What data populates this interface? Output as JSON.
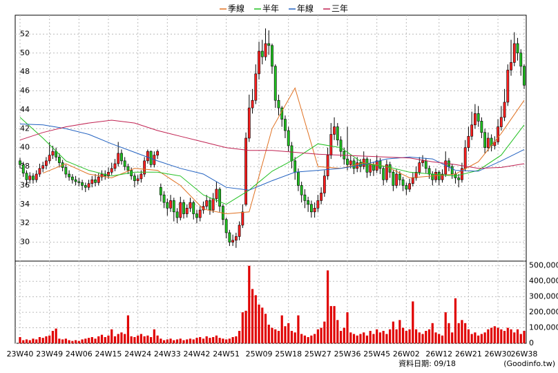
{
  "chart_data": {
    "type": "candlestick",
    "ylim": [
      28,
      54
    ],
    "yticks": [
      30,
      32,
      34,
      36,
      38,
      40,
      42,
      44,
      46,
      48,
      50,
      52
    ],
    "xlim": [
      0,
      154
    ],
    "xticks": [
      {
        "value": 0,
        "label": "23W40"
      },
      {
        "value": 9,
        "label": "23W49"
      },
      {
        "value": 18,
        "label": "24W06"
      },
      {
        "value": 27,
        "label": "24W15"
      },
      {
        "value": 36,
        "label": "24W24"
      },
      {
        "value": 45,
        "label": "24W33"
      },
      {
        "value": 54,
        "label": "24W42"
      },
      {
        "value": 63,
        "label": "24W51"
      },
      {
        "value": 73,
        "label": "25W09"
      },
      {
        "value": 82,
        "label": "25W18"
      },
      {
        "value": 91,
        "label": "25W27"
      },
      {
        "value": 100,
        "label": "25W36"
      },
      {
        "value": 109,
        "label": "25W45"
      },
      {
        "value": 118,
        "label": "26W02"
      },
      {
        "value": 128,
        "label": "26W12"
      },
      {
        "value": 137,
        "label": "26W21"
      },
      {
        "value": 146,
        "label": "26W30"
      },
      {
        "value": 154,
        "label": "26W38"
      }
    ],
    "grid": true,
    "up_color": "#ff2020",
    "down_color": "#20c020",
    "series": [
      {
        "name": "季線",
        "color": "#e07020",
        "x": [
          7,
          14,
          21,
          28,
          35,
          42,
          49,
          56,
          63,
          70,
          77,
          84,
          91,
          98,
          105,
          112,
          119,
          126,
          133,
          140,
          147,
          154
        ],
        "values": [
          37.3,
          38.3,
          37.2,
          36.8,
          37.8,
          37.6,
          36.0,
          33.5,
          33.0,
          33.2,
          42.0,
          46.3,
          38.0,
          37.8,
          38.4,
          38.0,
          36.8,
          37.0,
          37.2,
          38.5,
          41.5,
          45.0
        ]
      },
      {
        "name": "半年",
        "color": "#20c020",
        "x": [
          0,
          7,
          14,
          21,
          28,
          35,
          42,
          49,
          56,
          63,
          70,
          77,
          84,
          91,
          98,
          105,
          112,
          119,
          126,
          133,
          140,
          147,
          154
        ],
        "values": [
          43.2,
          41.0,
          38.6,
          37.6,
          37.0,
          37.4,
          37.4,
          37.0,
          35.0,
          34.0,
          35.5,
          37.5,
          38.8,
          40.4,
          40.0,
          38.3,
          38.0,
          37.4,
          37.2,
          37.0,
          37.6,
          39.2,
          42.4
        ]
      },
      {
        "name": "年線",
        "color": "#2060c0",
        "x": [
          0,
          7,
          14,
          21,
          28,
          35,
          42,
          49,
          56,
          63,
          70,
          77,
          84,
          91,
          98,
          105,
          112,
          119,
          126,
          133,
          140,
          147,
          154
        ],
        "values": [
          42.5,
          42.4,
          42.0,
          41.4,
          40.4,
          39.5,
          38.6,
          37.8,
          37.2,
          35.8,
          35.5,
          36.5,
          37.4,
          37.6,
          37.8,
          38.2,
          38.8,
          39.0,
          38.8,
          37.6,
          37.5,
          38.6,
          39.8
        ]
      },
      {
        "name": "三年",
        "color": "#c02050",
        "x": [
          0,
          7,
          14,
          21,
          28,
          35,
          42,
          49,
          56,
          63,
          70,
          77,
          84,
          91,
          98,
          105,
          112,
          119,
          126,
          133,
          140,
          147,
          154
        ],
        "values": [
          40.8,
          41.6,
          42.2,
          42.6,
          42.9,
          42.6,
          41.8,
          41.2,
          40.6,
          40.0,
          39.7,
          39.7,
          39.5,
          39.3,
          39.2,
          39.1,
          39.0,
          38.9,
          38.5,
          38.2,
          37.8,
          37.9,
          38.3
        ]
      }
    ],
    "candles": [
      [
        38.6,
        38.9,
        37.8,
        38.2
      ],
      [
        38.2,
        38.5,
        36.9,
        37.3
      ],
      [
        37.3,
        37.6,
        36.1,
        36.6
      ],
      [
        36.6,
        37.4,
        36.2,
        37.0
      ],
      [
        37.0,
        37.3,
        36.2,
        36.6
      ],
      [
        36.6,
        37.6,
        36.3,
        37.2
      ],
      [
        37.2,
        38.3,
        36.9,
        37.8
      ],
      [
        37.8,
        38.5,
        37.4,
        38.1
      ],
      [
        38.1,
        39.0,
        37.7,
        38.6
      ],
      [
        38.6,
        40.6,
        38.3,
        39.2
      ],
      [
        39.2,
        40.2,
        38.8,
        39.6
      ],
      [
        39.6,
        40.0,
        38.6,
        39.0
      ],
      [
        39.0,
        39.4,
        37.9,
        38.4
      ],
      [
        38.4,
        38.7,
        37.5,
        37.9
      ],
      [
        37.9,
        38.2,
        36.8,
        37.2
      ],
      [
        37.2,
        37.6,
        36.5,
        36.9
      ],
      [
        36.9,
        37.2,
        36.2,
        36.6
      ],
      [
        36.6,
        37.0,
        36.0,
        36.4
      ],
      [
        36.4,
        36.8,
        35.9,
        36.3
      ],
      [
        36.3,
        36.6,
        35.5,
        36.0
      ],
      [
        36.0,
        36.3,
        35.3,
        35.8
      ],
      [
        35.8,
        36.6,
        35.5,
        36.2
      ],
      [
        36.2,
        37.0,
        35.8,
        36.6
      ],
      [
        36.6,
        37.2,
        35.9,
        36.3
      ],
      [
        36.3,
        37.3,
        36.0,
        36.9
      ],
      [
        36.9,
        37.6,
        36.5,
        37.2
      ],
      [
        37.2,
        37.6,
        36.6,
        37.0
      ],
      [
        37.0,
        37.9,
        36.7,
        37.4
      ],
      [
        37.4,
        38.4,
        37.1,
        37.8
      ],
      [
        37.8,
        38.8,
        37.5,
        38.3
      ],
      [
        38.3,
        40.6,
        38.0,
        39.4
      ],
      [
        39.4,
        39.8,
        38.2,
        38.6
      ],
      [
        38.6,
        39.0,
        37.6,
        38.0
      ],
      [
        38.0,
        38.3,
        37.2,
        37.6
      ],
      [
        37.6,
        37.9,
        36.6,
        37.0
      ],
      [
        37.0,
        37.3,
        35.8,
        36.5
      ],
      [
        36.5,
        37.1,
        36.1,
        36.7
      ],
      [
        36.7,
        37.6,
        36.3,
        37.2
      ],
      [
        37.2,
        39.0,
        36.9,
        38.6
      ],
      [
        38.6,
        39.8,
        38.3,
        39.6
      ],
      [
        39.6,
        39.7,
        37.9,
        38.2
      ],
      [
        38.2,
        39.6,
        37.9,
        39.2
      ],
      [
        39.2,
        39.8,
        38.8,
        39.6
      ],
      [
        35.8,
        36.2,
        34.3,
        35.0
      ],
      [
        35.0,
        35.4,
        33.6,
        34.2
      ],
      [
        34.2,
        34.6,
        32.8,
        33.6
      ],
      [
        33.6,
        35.0,
        33.2,
        34.4
      ],
      [
        34.4,
        34.7,
        32.2,
        33.2
      ],
      [
        33.2,
        33.6,
        32.0,
        32.6
      ],
      [
        32.6,
        34.8,
        32.3,
        34.2
      ],
      [
        34.2,
        34.5,
        32.5,
        33.0
      ],
      [
        33.0,
        34.0,
        32.6,
        33.6
      ],
      [
        33.6,
        34.7,
        33.2,
        34.2
      ],
      [
        34.2,
        34.4,
        32.4,
        33.0
      ],
      [
        33.0,
        33.4,
        32.0,
        32.6
      ],
      [
        32.6,
        33.8,
        32.2,
        33.4
      ],
      [
        33.4,
        34.3,
        33.0,
        33.8
      ],
      [
        33.8,
        35.0,
        33.5,
        34.4
      ],
      [
        34.4,
        34.7,
        32.9,
        33.4
      ],
      [
        33.4,
        35.2,
        33.1,
        34.6
      ],
      [
        34.6,
        36.4,
        34.2,
        35.6
      ],
      [
        35.6,
        35.8,
        33.2,
        33.8
      ],
      [
        33.8,
        34.0,
        31.8,
        32.4
      ],
      [
        32.4,
        32.6,
        30.4,
        31.0
      ],
      [
        31.0,
        31.3,
        29.6,
        30.0
      ],
      [
        30.0,
        30.8,
        29.6,
        30.2
      ],
      [
        30.2,
        31.0,
        29.4,
        30.6
      ],
      [
        30.6,
        32.2,
        30.2,
        31.8
      ],
      [
        31.8,
        34.0,
        31.5,
        33.2
      ],
      [
        34.0,
        41.6,
        33.8,
        41.0
      ],
      [
        41.0,
        45.6,
        40.6,
        44.2
      ],
      [
        44.2,
        46.2,
        43.6,
        45.0
      ],
      [
        45.0,
        48.8,
        44.6,
        47.8
      ],
      [
        47.8,
        51.2,
        47.2,
        50.2
      ],
      [
        50.2,
        51.4,
        48.8,
        49.6
      ],
      [
        49.6,
        52.6,
        49.2,
        51.0
      ],
      [
        51.0,
        52.4,
        49.8,
        50.8
      ],
      [
        50.8,
        51.0,
        47.8,
        48.6
      ],
      [
        48.6,
        48.8,
        44.2,
        45.0
      ],
      [
        45.0,
        45.6,
        43.4,
        44.2
      ],
      [
        44.2,
        44.4,
        42.2,
        43.0
      ],
      [
        43.0,
        43.4,
        41.0,
        41.8
      ],
      [
        41.8,
        42.2,
        39.6,
        40.2
      ],
      [
        40.2,
        40.6,
        37.8,
        38.6
      ],
      [
        38.6,
        39.0,
        36.6,
        37.4
      ],
      [
        37.4,
        37.8,
        35.4,
        36.0
      ],
      [
        36.0,
        36.4,
        34.2,
        35.0
      ],
      [
        35.0,
        35.6,
        33.6,
        34.4
      ],
      [
        34.4,
        34.8,
        33.2,
        34.0
      ],
      [
        34.0,
        34.4,
        32.6,
        33.2
      ],
      [
        33.2,
        34.2,
        32.6,
        33.6
      ],
      [
        33.6,
        35.0,
        33.2,
        34.4
      ],
      [
        34.4,
        35.8,
        34.0,
        35.2
      ],
      [
        35.2,
        37.6,
        34.8,
        37.0
      ],
      [
        37.0,
        40.0,
        36.6,
        39.2
      ],
      [
        39.2,
        42.6,
        38.8,
        41.4
      ],
      [
        41.4,
        43.2,
        40.8,
        42.2
      ],
      [
        42.2,
        42.6,
        40.2,
        40.8
      ],
      [
        40.8,
        41.2,
        39.0,
        39.6
      ],
      [
        39.6,
        40.0,
        38.2,
        38.8
      ],
      [
        38.8,
        42.2,
        37.6,
        38.2
      ],
      [
        38.2,
        39.2,
        37.8,
        38.6
      ],
      [
        38.6,
        38.9,
        37.2,
        37.8
      ],
      [
        37.8,
        39.0,
        37.4,
        38.4
      ],
      [
        38.4,
        38.8,
        37.4,
        38.0
      ],
      [
        38.0,
        39.6,
        37.7,
        38.8
      ],
      [
        38.8,
        39.0,
        36.8,
        37.4
      ],
      [
        37.4,
        38.8,
        37.0,
        38.2
      ],
      [
        38.2,
        38.5,
        37.0,
        37.6
      ],
      [
        37.6,
        39.2,
        37.3,
        38.6
      ],
      [
        38.6,
        38.9,
        37.2,
        37.8
      ],
      [
        37.8,
        38.0,
        36.0,
        36.6
      ],
      [
        36.6,
        38.7,
        36.3,
        38.2
      ],
      [
        38.2,
        38.5,
        36.8,
        37.4
      ],
      [
        37.4,
        37.6,
        35.4,
        36.0
      ],
      [
        36.0,
        37.7,
        35.7,
        37.2
      ],
      [
        37.2,
        37.5,
        36.0,
        36.6
      ],
      [
        36.6,
        36.9,
        35.4,
        36.0
      ],
      [
        36.0,
        36.3,
        35.0,
        35.6
      ],
      [
        35.6,
        36.7,
        35.3,
        36.2
      ],
      [
        36.2,
        37.4,
        35.9,
        36.8
      ],
      [
        36.8,
        38.0,
        36.5,
        37.4
      ],
      [
        37.4,
        39.0,
        37.1,
        38.4
      ],
      [
        38.4,
        39.2,
        38.0,
        38.6
      ],
      [
        38.6,
        38.9,
        37.3,
        37.8
      ],
      [
        37.8,
        38.1,
        36.7,
        37.2
      ],
      [
        37.2,
        37.5,
        36.0,
        36.6
      ],
      [
        36.6,
        37.8,
        36.3,
        37.4
      ],
      [
        37.4,
        37.6,
        36.0,
        36.6
      ],
      [
        36.6,
        37.7,
        36.3,
        37.2
      ],
      [
        37.2,
        39.6,
        36.9,
        38.6
      ],
      [
        38.6,
        38.9,
        37.5,
        38.0
      ],
      [
        38.0,
        38.3,
        36.7,
        37.2
      ],
      [
        37.2,
        37.5,
        36.2,
        36.8
      ],
      [
        36.8,
        37.2,
        35.8,
        36.6
      ],
      [
        36.6,
        38.4,
        36.3,
        37.8
      ],
      [
        37.8,
        40.8,
        37.5,
        40.0
      ],
      [
        40.0,
        42.2,
        39.6,
        41.2
      ],
      [
        41.2,
        43.8,
        40.8,
        42.4
      ],
      [
        42.4,
        44.6,
        42.0,
        43.6
      ],
      [
        43.6,
        44.4,
        42.2,
        42.8
      ],
      [
        42.8,
        43.2,
        41.0,
        41.6
      ],
      [
        41.6,
        42.0,
        39.4,
        40.0
      ],
      [
        40.0,
        41.6,
        39.6,
        41.0
      ],
      [
        41.0,
        41.4,
        39.6,
        40.2
      ],
      [
        40.2,
        41.2,
        39.8,
        40.6
      ],
      [
        40.6,
        43.0,
        40.3,
        42.2
      ],
      [
        42.2,
        44.4,
        41.8,
        43.2
      ],
      [
        43.2,
        46.2,
        42.8,
        44.8
      ],
      [
        44.8,
        48.8,
        44.4,
        48.2
      ],
      [
        48.2,
        51.4,
        47.6,
        49.0
      ],
      [
        49.0,
        52.2,
        48.6,
        51.0
      ],
      [
        51.0,
        51.6,
        49.2,
        50.0
      ],
      [
        50.0,
        50.4,
        47.6,
        48.6
      ],
      [
        48.6,
        48.8,
        46.2,
        46.6
      ]
    ],
    "volume": {
      "color": "#e00000",
      "ylim": [
        0,
        530000
      ],
      "yticks": [
        0,
        {
          "value": 100000,
          "label": "100,000"
        },
        {
          "value": 200000,
          "label": "200,000"
        },
        {
          "value": 300000,
          "label": "300,000"
        },
        {
          "value": 400000,
          "label": "400,000"
        },
        {
          "value": 500000,
          "label": "500,000"
        }
      ],
      "values": [
        40000,
        20000,
        25000,
        20000,
        30000,
        25000,
        40000,
        35000,
        45000,
        50000,
        80000,
        95000,
        30000,
        25000,
        30000,
        20000,
        15000,
        20000,
        15000,
        25000,
        30000,
        35000,
        40000,
        30000,
        45000,
        55000,
        40000,
        50000,
        90000,
        45000,
        60000,
        70000,
        60000,
        180000,
        45000,
        40000,
        50000,
        60000,
        45000,
        50000,
        40000,
        90000,
        50000,
        30000,
        20000,
        25000,
        30000,
        20000,
        25000,
        30000,
        20000,
        25000,
        30000,
        25000,
        35000,
        40000,
        30000,
        45000,
        35000,
        40000,
        50000,
        35000,
        30000,
        25000,
        30000,
        40000,
        45000,
        80000,
        200000,
        210000,
        500000,
        350000,
        310000,
        250000,
        230000,
        190000,
        120000,
        100000,
        90000,
        80000,
        180000,
        110000,
        130000,
        80000,
        70000,
        180000,
        60000,
        50000,
        40000,
        50000,
        60000,
        90000,
        100000,
        140000,
        470000,
        240000,
        240000,
        150000,
        80000,
        100000,
        200000,
        70000,
        60000,
        50000,
        60000,
        70000,
        50000,
        80000,
        60000,
        90000,
        70000,
        80000,
        60000,
        90000,
        140000,
        90000,
        150000,
        100000,
        80000,
        90000,
        270000,
        90000,
        70000,
        60000,
        80000,
        90000,
        130000,
        70000,
        60000,
        50000,
        200000,
        130000,
        70000,
        290000,
        130000,
        150000,
        130000,
        90000,
        60000,
        70000,
        50000,
        60000,
        70000,
        90000,
        100000,
        110000,
        100000,
        90000,
        80000,
        100000,
        90000,
        70000,
        90000,
        60000,
        80000
      ]
    },
    "data_date": "資料日期: 09/18",
    "source": "(Goodinfo.tw)"
  }
}
